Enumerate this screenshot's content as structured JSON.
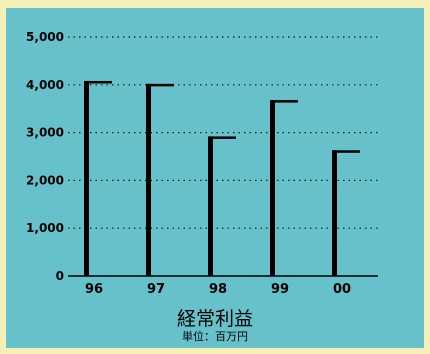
{
  "colors": {
    "page_background": "#f4eeb7",
    "plot_background": "#67c1cb",
    "bar_color": "#000000",
    "gridline_color": "#1a1a1a"
  },
  "chart_data": {
    "type": "bar",
    "title": "経常利益",
    "unit_label": "単位：百万円",
    "categories": [
      "96",
      "97",
      "98",
      "99",
      "00"
    ],
    "values": [
      4080,
      4020,
      2920,
      3680,
      2630
    ],
    "ylim": [
      0,
      5000
    ],
    "yticks": [
      0,
      1000,
      2000,
      3000,
      4000,
      5000
    ],
    "ytick_labels": [
      "0",
      "1,000",
      "2,000",
      "3,000",
      "4,000",
      "5,000"
    ],
    "grid": "horizontal-dotted",
    "legend": "none"
  }
}
